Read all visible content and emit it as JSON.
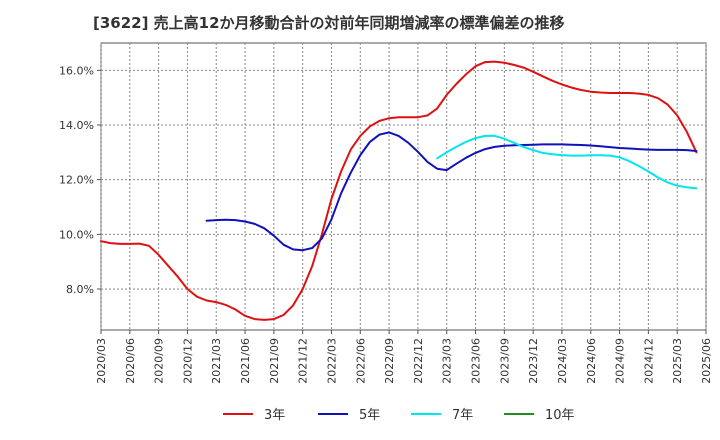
{
  "chart_data": {
    "type": "line",
    "title": "[3622]  売上高12か月移動合計の対前年同期増減率の標準偏差の推移",
    "xlabel": "",
    "ylabel": "",
    "ylim": [
      6.5,
      17.0
    ],
    "y_ticks": [
      "8.0%",
      "10.0%",
      "12.0%",
      "14.0%",
      "16.0%"
    ],
    "y_tick_values": [
      8,
      10,
      12,
      14,
      16
    ],
    "x_ticks": [
      "2020/03",
      "2020/06",
      "2020/09",
      "2020/12",
      "2021/03",
      "2021/06",
      "2021/09",
      "2021/12",
      "2022/03",
      "2022/06",
      "2022/09",
      "2022/12",
      "2023/03",
      "2023/06",
      "2023/09",
      "2023/12",
      "2024/03",
      "2024/06",
      "2024/09",
      "2024/12",
      "2025/03",
      "2025/06"
    ],
    "grid": true,
    "legend_position": "bottom",
    "series": [
      {
        "name": "3年",
        "color": "#dd1111",
        "points": [
          [
            "2020/03",
            9.75
          ],
          [
            "2020/04",
            9.68
          ],
          [
            "2020/05",
            9.65
          ],
          [
            "2020/06",
            9.65
          ],
          [
            "2020/07",
            9.66
          ],
          [
            "2020/08",
            9.58
          ],
          [
            "2020/09",
            9.25
          ],
          [
            "2020/10",
            8.85
          ],
          [
            "2020/11",
            8.45
          ],
          [
            "2020/12",
            8.0
          ],
          [
            "2021/01",
            7.72
          ],
          [
            "2021/02",
            7.58
          ],
          [
            "2021/03",
            7.52
          ],
          [
            "2021/04",
            7.42
          ],
          [
            "2021/05",
            7.25
          ],
          [
            "2021/06",
            7.02
          ],
          [
            "2021/07",
            6.9
          ],
          [
            "2021/08",
            6.87
          ],
          [
            "2021/09",
            6.9
          ],
          [
            "2021/10",
            7.05
          ],
          [
            "2021/11",
            7.4
          ],
          [
            "2021/12",
            8.0
          ],
          [
            "2022/01",
            8.85
          ],
          [
            "2022/02",
            10.0
          ],
          [
            "2022/03",
            11.3
          ],
          [
            "2022/04",
            12.3
          ],
          [
            "2022/05",
            13.1
          ],
          [
            "2022/06",
            13.6
          ],
          [
            "2022/07",
            13.95
          ],
          [
            "2022/08",
            14.15
          ],
          [
            "2022/09",
            14.25
          ],
          [
            "2022/10",
            14.28
          ],
          [
            "2022/11",
            14.28
          ],
          [
            "2022/12",
            14.28
          ],
          [
            "2023/01",
            14.35
          ],
          [
            "2023/02",
            14.6
          ],
          [
            "2023/03",
            15.1
          ],
          [
            "2023/04",
            15.5
          ],
          [
            "2023/05",
            15.85
          ],
          [
            "2023/06",
            16.15
          ],
          [
            "2023/07",
            16.3
          ],
          [
            "2023/08",
            16.32
          ],
          [
            "2023/09",
            16.28
          ],
          [
            "2023/10",
            16.2
          ],
          [
            "2023/11",
            16.1
          ],
          [
            "2023/12",
            15.95
          ],
          [
            "2024/01",
            15.78
          ],
          [
            "2024/02",
            15.62
          ],
          [
            "2024/03",
            15.48
          ],
          [
            "2024/04",
            15.37
          ],
          [
            "2024/05",
            15.28
          ],
          [
            "2024/06",
            15.22
          ],
          [
            "2024/07",
            15.19
          ],
          [
            "2024/08",
            15.17
          ],
          [
            "2024/09",
            15.17
          ],
          [
            "2024/10",
            15.17
          ],
          [
            "2024/11",
            15.15
          ],
          [
            "2024/12",
            15.1
          ],
          [
            "2025/01",
            14.98
          ],
          [
            "2025/02",
            14.75
          ],
          [
            "2025/03",
            14.35
          ],
          [
            "2025/04",
            13.75
          ],
          [
            "2025/05",
            13.0
          ]
        ]
      },
      {
        "name": "5年",
        "color": "#1111bb",
        "points": [
          [
            "2021/02",
            10.5
          ],
          [
            "2021/03",
            10.52
          ],
          [
            "2021/04",
            10.53
          ],
          [
            "2021/05",
            10.52
          ],
          [
            "2021/06",
            10.47
          ],
          [
            "2021/07",
            10.38
          ],
          [
            "2021/08",
            10.22
          ],
          [
            "2021/09",
            9.95
          ],
          [
            "2021/10",
            9.62
          ],
          [
            "2021/11",
            9.45
          ],
          [
            "2021/12",
            9.42
          ],
          [
            "2022/01",
            9.5
          ],
          [
            "2022/02",
            9.85
          ],
          [
            "2022/03",
            10.55
          ],
          [
            "2022/04",
            11.5
          ],
          [
            "2022/05",
            12.25
          ],
          [
            "2022/06",
            12.9
          ],
          [
            "2022/07",
            13.38
          ],
          [
            "2022/08",
            13.65
          ],
          [
            "2022/09",
            13.73
          ],
          [
            "2022/10",
            13.6
          ],
          [
            "2022/11",
            13.35
          ],
          [
            "2022/12",
            13.02
          ],
          [
            "2023/01",
            12.65
          ],
          [
            "2023/02",
            12.4
          ],
          [
            "2023/03",
            12.35
          ],
          [
            "2023/04",
            12.58
          ],
          [
            "2023/05",
            12.8
          ],
          [
            "2023/06",
            12.98
          ],
          [
            "2023/07",
            13.12
          ],
          [
            "2023/08",
            13.2
          ],
          [
            "2023/09",
            13.24
          ],
          [
            "2023/10",
            13.26
          ],
          [
            "2023/11",
            13.27
          ],
          [
            "2023/12",
            13.28
          ],
          [
            "2024/01",
            13.29
          ],
          [
            "2024/02",
            13.29
          ],
          [
            "2024/03",
            13.29
          ],
          [
            "2024/04",
            13.28
          ],
          [
            "2024/05",
            13.27
          ],
          [
            "2024/06",
            13.25
          ],
          [
            "2024/07",
            13.22
          ],
          [
            "2024/08",
            13.19
          ],
          [
            "2024/09",
            13.16
          ],
          [
            "2024/10",
            13.14
          ],
          [
            "2024/11",
            13.12
          ],
          [
            "2024/12",
            13.1
          ],
          [
            "2025/01",
            13.09
          ],
          [
            "2025/02",
            13.09
          ],
          [
            "2025/03",
            13.09
          ],
          [
            "2025/04",
            13.08
          ],
          [
            "2025/05",
            13.05
          ]
        ]
      },
      {
        "name": "7年",
        "color": "#00e5ee",
        "points": [
          [
            "2023/02",
            12.78
          ],
          [
            "2023/03",
            13.0
          ],
          [
            "2023/04",
            13.2
          ],
          [
            "2023/05",
            13.38
          ],
          [
            "2023/06",
            13.52
          ],
          [
            "2023/07",
            13.6
          ],
          [
            "2023/08",
            13.6
          ],
          [
            "2023/09",
            13.5
          ],
          [
            "2023/10",
            13.35
          ],
          [
            "2023/11",
            13.2
          ],
          [
            "2023/12",
            13.08
          ],
          [
            "2024/01",
            12.98
          ],
          [
            "2024/02",
            12.93
          ],
          [
            "2024/03",
            12.9
          ],
          [
            "2024/04",
            12.88
          ],
          [
            "2024/05",
            12.88
          ],
          [
            "2024/06",
            12.89
          ],
          [
            "2024/07",
            12.89
          ],
          [
            "2024/08",
            12.88
          ],
          [
            "2024/09",
            12.82
          ],
          [
            "2024/10",
            12.68
          ],
          [
            "2024/11",
            12.5
          ],
          [
            "2024/12",
            12.3
          ],
          [
            "2025/01",
            12.08
          ],
          [
            "2025/02",
            11.9
          ],
          [
            "2025/03",
            11.78
          ],
          [
            "2025/04",
            11.72
          ],
          [
            "2025/05",
            11.68
          ]
        ]
      },
      {
        "name": "10年",
        "color": "#228b22",
        "points": []
      }
    ]
  }
}
